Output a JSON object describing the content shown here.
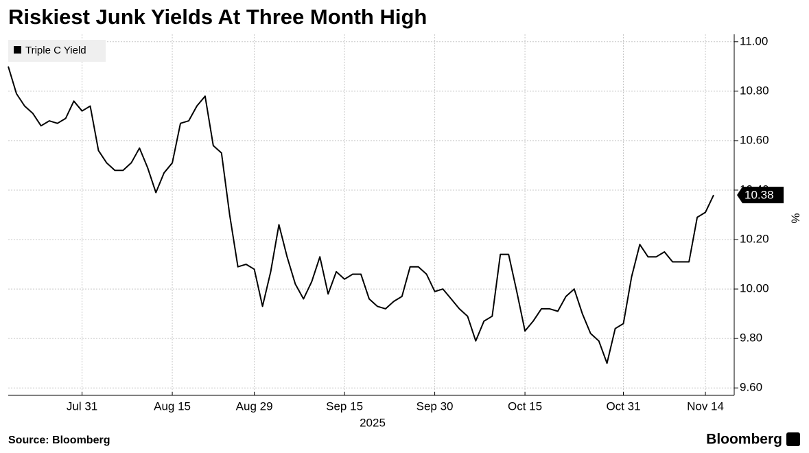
{
  "chart_data": {
    "type": "line",
    "title": "Riskiest Junk Yields At Three Month High",
    "source": "Source: Bloomberg",
    "brand": "Bloomberg",
    "xlabel": "2025",
    "ylabel": "%",
    "legend": "top-left",
    "grid": true,
    "x": [
      "2025-07-18",
      "2025-07-21",
      "2025-07-22",
      "2025-07-23",
      "2025-07-24",
      "2025-07-25",
      "2025-07-28",
      "2025-07-29",
      "2025-07-30",
      "2025-07-31",
      "2025-08-01",
      "2025-08-04",
      "2025-08-05",
      "2025-08-06",
      "2025-08-07",
      "2025-08-08",
      "2025-08-11",
      "2025-08-12",
      "2025-08-13",
      "2025-08-14",
      "2025-08-15",
      "2025-08-18",
      "2025-08-19",
      "2025-08-20",
      "2025-08-21",
      "2025-08-22",
      "2025-08-25",
      "2025-08-26",
      "2025-08-27",
      "2025-08-28",
      "2025-08-29",
      "2025-09-01",
      "2025-09-02",
      "2025-09-03",
      "2025-09-04",
      "2025-09-05",
      "2025-09-08",
      "2025-09-09",
      "2025-09-10",
      "2025-09-11",
      "2025-09-12",
      "2025-09-15",
      "2025-09-16",
      "2025-09-17",
      "2025-09-18",
      "2025-09-19",
      "2025-09-22",
      "2025-09-23",
      "2025-09-24",
      "2025-09-25",
      "2025-09-26",
      "2025-09-29",
      "2025-09-30",
      "2025-10-01",
      "2025-10-02",
      "2025-10-03",
      "2025-10-06",
      "2025-10-07",
      "2025-10-08",
      "2025-10-09",
      "2025-10-10",
      "2025-10-13",
      "2025-10-14",
      "2025-10-15",
      "2025-10-16",
      "2025-10-17",
      "2025-10-20",
      "2025-10-21",
      "2025-10-22",
      "2025-10-23",
      "2025-10-24",
      "2025-10-27",
      "2025-10-28",
      "2025-10-29",
      "2025-10-30",
      "2025-10-31",
      "2025-11-03",
      "2025-11-04",
      "2025-11-05",
      "2025-11-06",
      "2025-11-07",
      "2025-11-10",
      "2025-11-11",
      "2025-11-12",
      "2025-11-13",
      "2025-11-14",
      "2025-11-17"
    ],
    "xticks": [
      {
        "value": "2025-07-31",
        "label": "Jul 31"
      },
      {
        "value": "2025-08-15",
        "label": "Aug 15"
      },
      {
        "value": "2025-08-29",
        "label": "Aug 29"
      },
      {
        "value": "2025-09-15",
        "label": "Sep 15"
      },
      {
        "value": "2025-09-30",
        "label": "Sep 30"
      },
      {
        "value": "2025-10-15",
        "label": "Oct 15"
      },
      {
        "value": "2025-10-31",
        "label": "Oct 31"
      },
      {
        "value": "2025-11-14",
        "label": "Nov 14"
      }
    ],
    "ylim": [
      9.57,
      11.03
    ],
    "yticks": [
      {
        "value": 9.6,
        "label": "9.60"
      },
      {
        "value": 9.8,
        "label": "9.80"
      },
      {
        "value": 10,
        "label": "10.00"
      },
      {
        "value": 10.2,
        "label": "10.20"
      },
      {
        "value": 10.4,
        "label": "10.40"
      },
      {
        "value": 10.6,
        "label": "10.60"
      },
      {
        "value": 10.8,
        "label": "10.80"
      },
      {
        "value": 11,
        "label": "11.00"
      }
    ],
    "series": [
      {
        "name": "Triple C Yield",
        "color": "#000000",
        "values": [
          10.9,
          10.79,
          10.74,
          10.71,
          10.66,
          10.68,
          10.67,
          10.69,
          10.76,
          10.72,
          10.74,
          10.56,
          10.51,
          10.48,
          10.48,
          10.51,
          10.57,
          10.49,
          10.39,
          10.47,
          10.51,
          10.67,
          10.68,
          10.74,
          10.78,
          10.58,
          10.55,
          10.3,
          10.09,
          10.1,
          10.08,
          9.93,
          10.07,
          10.26,
          10.13,
          10.02,
          9.96,
          10.03,
          10.13,
          9.98,
          10.07,
          10.04,
          10.06,
          10.06,
          9.96,
          9.93,
          9.92,
          9.95,
          9.97,
          10.09,
          10.09,
          10.06,
          9.99,
          10.0,
          9.96,
          9.92,
          9.89,
          9.79,
          9.87,
          9.89,
          10.14,
          10.14,
          9.99,
          9.83,
          9.87,
          9.92,
          9.92,
          9.91,
          9.97,
          10.0,
          9.9,
          9.82,
          9.79,
          9.7,
          9.84,
          9.86,
          10.05,
          10.18,
          10.13,
          10.13,
          10.15,
          10.11,
          10.11,
          10.11,
          10.29,
          10.31,
          10.38
        ],
        "value_labels": [
          null,
          null,
          null,
          null,
          null,
          null,
          null,
          null,
          null,
          null,
          null,
          null,
          null,
          null,
          null,
          null,
          null,
          null,
          null,
          null,
          null,
          null,
          null,
          null,
          null,
          null,
          null,
          null,
          null,
          null,
          null,
          null,
          null,
          null,
          null,
          null,
          null,
          null,
          null,
          null,
          null,
          null,
          null,
          null,
          null,
          null,
          null,
          null,
          null,
          null,
          null,
          null,
          null,
          null,
          null,
          null,
          null,
          null,
          null,
          null,
          null,
          null,
          null,
          null,
          null,
          null,
          null,
          null,
          null,
          null,
          null,
          null,
          null,
          null,
          null,
          null,
          null,
          null,
          null,
          null,
          null,
          null,
          null,
          null,
          null,
          null,
          "10.38"
        ]
      }
    ]
  }
}
